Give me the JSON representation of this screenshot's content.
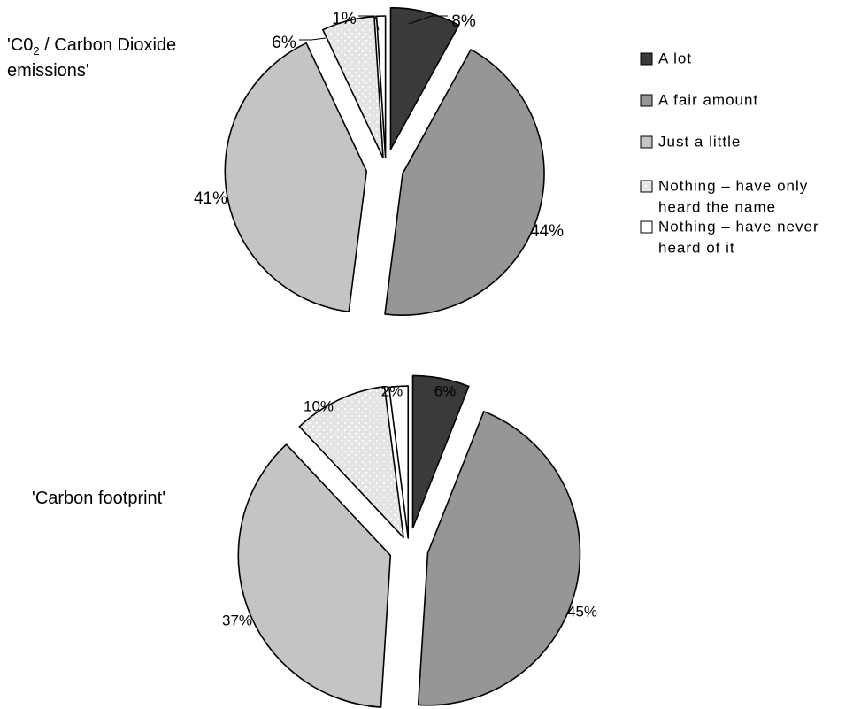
{
  "legend": {
    "items": [
      {
        "label_lines": [
          "A lot"
        ],
        "color": "#3a3a3a",
        "pattern": "none"
      },
      {
        "label_lines": [
          "A fair amount"
        ],
        "color": "#969696",
        "pattern": "none"
      },
      {
        "label_lines": [
          "Just a little"
        ],
        "color": "#c4c4c4",
        "pattern": "none"
      },
      {
        "label_lines": [
          "Nothing – have only",
          "heard the name"
        ],
        "color": "#e8e8e8",
        "pattern": "dots"
      },
      {
        "label_lines": [
          "Nothing – have never",
          "heard of it"
        ],
        "color": "#ffffff",
        "pattern": "none"
      }
    ]
  },
  "chart_data": [
    {
      "type": "pie",
      "title_main": "'C0",
      "title_sub": "2",
      "title_rest": " / Carbon Dioxide",
      "title_line2": " emissions'",
      "categories": [
        "A lot",
        "A fair amount",
        "Just a little",
        "Nothing – have only heard the name",
        "Nothing – have never heard of it"
      ],
      "values": [
        8,
        44,
        41,
        6,
        1
      ],
      "labels": [
        "8%",
        "44%",
        "41%",
        "6%",
        "1%"
      ],
      "start": "12 o'clock, clockwise",
      "exploded": true
    },
    {
      "type": "pie",
      "title_main": "'Carbon footprint'",
      "categories": [
        "A lot",
        "A fair amount",
        "Just a little",
        "Nothing – have only heard the name",
        "Nothing – have never heard of it"
      ],
      "values": [
        6,
        45,
        37,
        10,
        2
      ],
      "labels": [
        "6%",
        "45%",
        "37%",
        "10%",
        "2%"
      ],
      "start": "12 o'clock, clockwise",
      "exploded": true
    }
  ]
}
